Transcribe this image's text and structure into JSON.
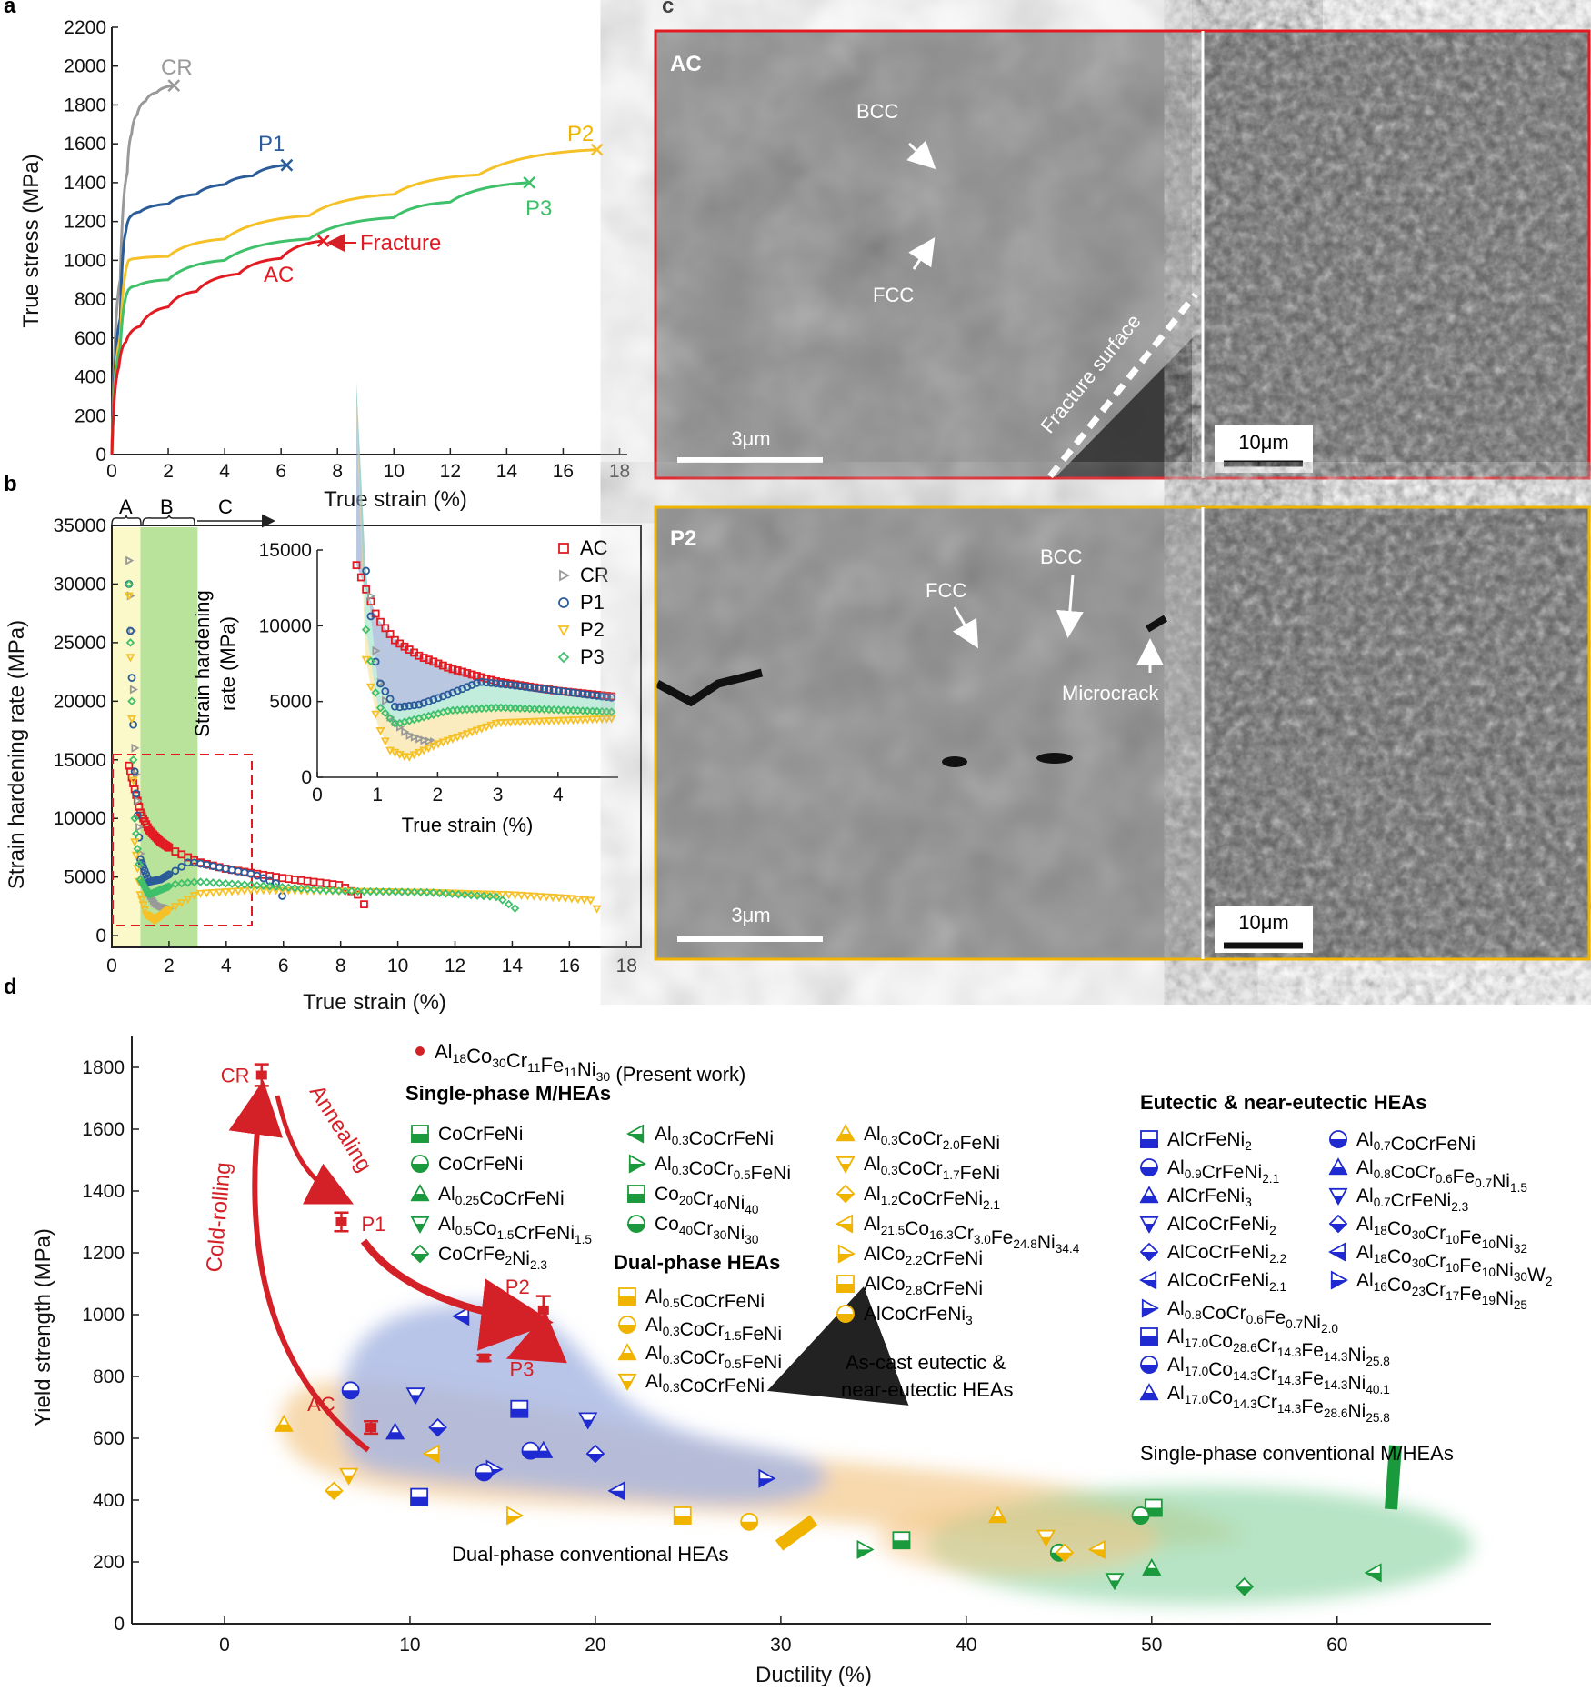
{
  "panel_labels": {
    "a": "a",
    "b": "b",
    "c": "c",
    "d": "d"
  },
  "colors": {
    "AC": "#e21b23",
    "CR": "#999999",
    "P1": "#2b5c9a",
    "P2": "#f5c127",
    "P3": "#3fc06a",
    "single": "#1a9a3c",
    "dual": "#f0b400",
    "eutectic": "#1f2ad0",
    "present": "#d42127"
  },
  "chart_data": [
    {
      "panel": "a",
      "type": "line",
      "xlabel": "True strain (%)",
      "ylabel": "True stress (MPa)",
      "xlim": [
        0,
        18
      ],
      "ylim": [
        0,
        2200
      ],
      "xticks": [
        0,
        2,
        4,
        6,
        8,
        10,
        12,
        14,
        16,
        18
      ],
      "yticks": [
        0,
        200,
        400,
        600,
        800,
        1000,
        1200,
        1400,
        1600,
        1800,
        2000,
        2200
      ],
      "series": [
        {
          "name": "CR",
          "x": [
            0,
            0.3,
            0.55,
            0.7,
            0.9,
            1.2,
            1.6,
            2.2
          ],
          "y": [
            0,
            900,
            1450,
            1650,
            1750,
            1820,
            1865,
            1900
          ]
        },
        {
          "name": "P1",
          "x": [
            0,
            0.3,
            0.5,
            0.7,
            1.0,
            2.0,
            3.0,
            4.0,
            5.0,
            6.2
          ],
          "y": [
            0,
            700,
            1150,
            1230,
            1250,
            1290,
            1340,
            1390,
            1435,
            1490
          ]
        },
        {
          "name": "P2",
          "x": [
            0,
            0.3,
            0.6,
            0.9,
            2.0,
            4.0,
            7.0,
            10.0,
            13.0,
            17.2
          ],
          "y": [
            0,
            600,
            1000,
            1010,
            1020,
            1110,
            1230,
            1340,
            1440,
            1570
          ]
        },
        {
          "name": "P3",
          "x": [
            0,
            0.3,
            0.6,
            0.9,
            2.0,
            4.0,
            7.0,
            10.0,
            12.0,
            14.8
          ],
          "y": [
            0,
            550,
            850,
            870,
            900,
            1000,
            1110,
            1220,
            1300,
            1400
          ]
        },
        {
          "name": "AC",
          "x": [
            0,
            0.25,
            0.5,
            1.0,
            2.0,
            3.0,
            4.5,
            6.0,
            7.5
          ],
          "y": [
            0,
            450,
            580,
            660,
            760,
            840,
            930,
            1010,
            1100
          ]
        }
      ],
      "annotations": {
        "CR": "CR",
        "P1": "P1",
        "P2": "P2",
        "P3": "P3",
        "AC": "AC",
        "fracture": "Fracture"
      }
    },
    {
      "panel": "b",
      "type": "scatter",
      "xlabel": "True strain (%)",
      "ylabel": "Strain hardening rate (MPa)",
      "xlim": [
        0,
        18.5
      ],
      "ylim": [
        -1000,
        35000
      ],
      "xticks": [
        0,
        2,
        4,
        6,
        8,
        10,
        12,
        14,
        16,
        18
      ],
      "yticks": [
        0,
        5000,
        10000,
        15000,
        20000,
        25000,
        30000,
        35000
      ],
      "regions": [
        "A",
        "B",
        "C"
      ],
      "series": [
        {
          "name": "AC",
          "x": [
            0.6,
            0.8,
            1.0,
            1.3,
            1.7,
            2.2,
            3.0,
            4.0,
            5.0,
            6.0,
            7.0,
            8.0,
            8.6,
            9.0
          ],
          "y": [
            14500,
            12500,
            10500,
            9000,
            8000,
            7200,
            6300,
            5700,
            5300,
            4900,
            4600,
            4300,
            3500,
            2000
          ]
        },
        {
          "name": "CR",
          "x": [
            0.6,
            0.7,
            0.8,
            1.0,
            1.2,
            1.5,
            1.8,
            2.0
          ],
          "y": [
            32000,
            26000,
            16000,
            7000,
            4000,
            2800,
            2400,
            2300
          ]
        },
        {
          "name": "P1",
          "x": [
            0.6,
            0.8,
            1.0,
            1.3,
            1.7,
            2.2,
            2.7,
            3.2,
            4.0,
            5.0,
            5.8,
            6.1
          ],
          "y": [
            30000,
            14000,
            6500,
            4600,
            4800,
            5500,
            6300,
            6100,
            5700,
            5200,
            4400,
            2500
          ]
        },
        {
          "name": "P2",
          "x": [
            0.6,
            0.8,
            1.0,
            1.2,
            1.5,
            2.0,
            3.0,
            5.0,
            8.0,
            11.0,
            14.0,
            16.0,
            16.8,
            17.1
          ],
          "y": [
            29000,
            8000,
            3500,
            1800,
            1300,
            2200,
            3600,
            3900,
            3800,
            3700,
            3500,
            3200,
            3000,
            1700
          ]
        },
        {
          "name": "P3",
          "x": [
            0.6,
            0.8,
            1.0,
            1.3,
            1.7,
            2.2,
            3.0,
            5.0,
            8.0,
            11.0,
            13.5,
            14.3
          ],
          "y": [
            30000,
            10000,
            4800,
            3500,
            3900,
            4400,
            4600,
            4300,
            3800,
            3700,
            3300,
            2000
          ]
        }
      ],
      "inset": {
        "xlabel": "True strain (%)",
        "ylabel_line1": "Strain hardening",
        "ylabel_line2": "rate (MPa)",
        "xlim": [
          0,
          5
        ],
        "ylim": [
          0,
          15000
        ],
        "xticks": [
          0,
          1,
          2,
          3,
          4
        ],
        "yticks": [
          0,
          5000,
          10000,
          15000
        ]
      }
    },
    {
      "panel": "d",
      "type": "scatter",
      "xlabel": "Ductility (%)",
      "ylabel": "Yield strength (MPa)",
      "xlim": [
        -5,
        65
      ],
      "ylim": [
        0,
        1900
      ],
      "xticks": [
        0,
        10,
        20,
        30,
        40,
        50,
        60
      ],
      "yticks": [
        0,
        200,
        400,
        600,
        800,
        1000,
        1200,
        1400,
        1600,
        1800
      ],
      "present_work": [
        {
          "label": "CR",
          "x": 2.0,
          "y": 1775,
          "err": 35
        },
        {
          "label": "P1",
          "x": 6.3,
          "y": 1300,
          "err": 30
        },
        {
          "label": "P2",
          "x": 17.2,
          "y": 1015,
          "err": 45
        },
        {
          "label": "P3",
          "x": 14.0,
          "y": 860,
          "err": 10
        },
        {
          "label": "AC",
          "x": 7.9,
          "y": 635,
          "err": 20
        }
      ],
      "single_phase_points": [
        [
          50.1,
          375
        ],
        [
          49.4,
          350
        ],
        [
          50.0,
          180
        ],
        [
          48.0,
          140
        ],
        [
          55.0,
          120
        ],
        [
          62.0,
          165
        ],
        [
          34.5,
          240
        ],
        [
          36.5,
          270
        ],
        [
          45.0,
          230
        ]
      ],
      "dual_phase_points": [
        [
          3.2,
          645
        ],
        [
          6.7,
          480
        ],
        [
          5.9,
          430
        ],
        [
          11.2,
          550
        ],
        [
          15.6,
          350
        ],
        [
          24.7,
          350
        ],
        [
          28.3,
          330
        ],
        [
          41.7,
          350
        ],
        [
          44.3,
          280
        ],
        [
          45.3,
          230
        ],
        [
          47.1,
          240
        ]
      ],
      "eutectic_points": [
        [
          6.8,
          755
        ],
        [
          9.2,
          620
        ],
        [
          10.3,
          740
        ],
        [
          11.5,
          635
        ],
        [
          12.8,
          995
        ],
        [
          14.5,
          500
        ],
        [
          15.9,
          695
        ],
        [
          16.5,
          560
        ],
        [
          17.2,
          560
        ],
        [
          19.6,
          660
        ],
        [
          20.0,
          550
        ],
        [
          21.2,
          430
        ],
        [
          29.2,
          470
        ],
        [
          10.5,
          410
        ],
        [
          14.0,
          490
        ]
      ]
    }
  ],
  "panel_a": {
    "fracture_label": "Fracture"
  },
  "panel_b": {
    "region_A": "A",
    "region_B": "B",
    "region_C": "C"
  },
  "panel_c": {
    "top": {
      "tag": "AC",
      "bcc": "BCC",
      "fcc": "FCC",
      "fracture_surface": "Fracture surface",
      "scale1": "3μm",
      "scale2": "10μm"
    },
    "bottom": {
      "tag": "P2",
      "fcc": "FCC",
      "bcc": "BCC",
      "microcrack": "Microcrack",
      "scale1": "3μm",
      "scale2": "10μm"
    }
  },
  "panel_d": {
    "present_work": "Al18Co30Cr11Fe11Ni30 (Present work)",
    "single_phase_title": "Single-phase M/HEAs",
    "dual_phase_title": "Dual-phase HEAs",
    "eutectic_title": "Eutectic & near-eutectic HEAs",
    "annotations": {
      "cold_rolling": "Cold-rolling",
      "annealing": "Annealing",
      "as_cast": "As-cast eutectic &",
      "as_cast2": "near-eutectic HEAs",
      "dual_conv": "Dual-phase conventional HEAs",
      "single_conv": "Single-phase conventional M/HEAs"
    },
    "legend_single_col1": [
      "CoCrFeNi",
      "CoCrFeNi",
      "Al0.25CoCrFeNi",
      "Al0.5Co1.5CrFeNi1.5",
      "CoCrFe2Ni2.3"
    ],
    "legend_single_col2": [
      "Al0.3CoCrFeNi",
      "Al0.3CoCr0.5FeNi",
      "Co20Cr40Ni40",
      "Co40Cr30Ni30"
    ],
    "legend_dual_col1": [
      "Al0.5CoCrFeNi",
      "Al0.3CoCr1.5FeNi",
      "Al0.3CoCr0.5FeNi",
      "Al0.3CoCrFeNi"
    ],
    "legend_dual_col2": [
      "Al0.3CoCr2.0FeNi",
      "Al0.3CoCr1.7FeNi",
      "Al1.2CoCrFeNi2.1",
      "Al21.5Co16.3Cr3.0Fe24.8Ni34.4",
      "AlCo2.2CrFeNi",
      "AlCo2.8CrFeNi",
      "AlCoCrFeNi3"
    ],
    "legend_eut_col1": [
      "AlCrFeNi2",
      "Al0.9CrFeNi2.1",
      "AlCrFeNi3",
      "AlCoCrFeNi2",
      "AlCoCrFeNi2.2",
      "AlCoCrFeNi2.1",
      "Al0.8CoCr0.6Fe0.7Ni2.0",
      "Al17.0Co28.6Cr14.3Fe14.3Ni25.8",
      "Al17.0Co14.3Cr14.3Fe14.3Ni40.1",
      "Al17.0Co14.3Cr14.3Fe28.6Ni25.8"
    ],
    "legend_eut_col2": [
      "Al0.7CoCrFeNi",
      "Al0.8CoCr0.6Fe0.7Ni1.5",
      "Al0.7CrFeNi2.3",
      "Al18Co30Cr10Fe10Ni32",
      "Al18Co30Cr10Fe10Ni30W2",
      "Al16Co23Cr17Fe19Ni25"
    ]
  }
}
